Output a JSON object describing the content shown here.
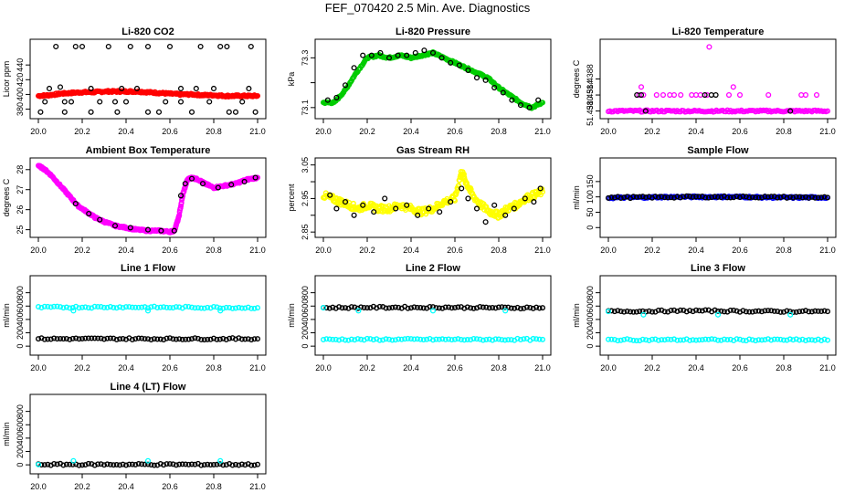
{
  "figure": {
    "title": "FEF_070420  2.5 Min. Ave. Diagnostics"
  },
  "colors": {
    "frame": "#000000",
    "black_points": "#000000"
  },
  "chart_data": [
    {
      "type": "scatter",
      "title": "Li-820 CO2",
      "ylabel": "Licor ppm",
      "xlim": [
        20.0,
        21.0
      ],
      "ylim": [
        372,
        470
      ],
      "yticks": [
        380,
        400,
        420,
        440
      ],
      "ytick_labels": [
        "380",
        "400",
        "420",
        "440"
      ],
      "series": [
        {
          "color": "#ff0000",
          "style": "dense",
          "x": [
            20.0,
            20.05,
            20.1,
            20.15,
            20.2,
            20.25,
            20.3,
            20.35,
            20.4,
            20.45,
            20.5,
            20.55,
            20.6,
            20.65,
            20.7,
            20.75,
            20.8,
            20.85,
            20.9,
            20.95,
            21.0
          ],
          "y": [
            398,
            399,
            401,
            402,
            403,
            403,
            404,
            404,
            404,
            404,
            403,
            402,
            401,
            400,
            400,
            399,
            399,
            398,
            398,
            398,
            398
          ]
        },
        {
          "color": "#000000",
          "style": "sparse",
          "x": [
            20.01,
            20.03,
            20.08,
            20.1,
            20.12,
            20.17,
            20.2,
            20.24,
            20.28,
            20.32,
            20.36,
            20.4,
            20.45,
            20.5,
            20.55,
            20.6,
            20.65,
            20.7,
            20.74,
            20.78,
            20.83,
            20.87,
            20.93,
            20.97,
            20.99,
            20.05,
            20.15,
            20.35,
            20.5,
            20.65,
            20.8,
            20.9,
            20.12,
            20.42,
            20.58,
            20.72,
            20.86,
            20.24,
            20.38,
            20.96
          ],
          "y": [
            376,
            390,
            465,
            410,
            376,
            465,
            465,
            376,
            390,
            465,
            376,
            390,
            408,
            465,
            376,
            465,
            390,
            376,
            465,
            390,
            465,
            376,
            390,
            465,
            376,
            408,
            390,
            390,
            376,
            408,
            408,
            376,
            390,
            465,
            390,
            408,
            465,
            408,
            408,
            408
          ]
        }
      ]
    },
    {
      "type": "scatter",
      "title": "Li-820 Pressure",
      "ylabel": "kPa",
      "xlim": [
        20.0,
        21.0
      ],
      "ylim": [
        73.07,
        73.36
      ],
      "yticks": [
        73.1,
        73.2,
        73.3
      ],
      "ytick_labels": [
        "73.1",
        "",
        "73.3"
      ],
      "series": [
        {
          "color": "#00cc00",
          "style": "dense",
          "x": [
            20.0,
            20.05,
            20.1,
            20.15,
            20.2,
            20.25,
            20.3,
            20.35,
            20.4,
            20.45,
            20.5,
            20.55,
            20.6,
            20.65,
            20.7,
            20.75,
            20.8,
            20.85,
            20.9,
            20.95,
            21.0
          ],
          "y": [
            73.12,
            73.12,
            73.17,
            73.24,
            73.3,
            73.31,
            73.3,
            73.31,
            73.3,
            73.31,
            73.32,
            73.3,
            73.28,
            73.26,
            73.24,
            73.22,
            73.18,
            73.15,
            73.12,
            73.1,
            73.12
          ]
        },
        {
          "color": "#000000",
          "style": "sparse",
          "x": [
            20.02,
            20.06,
            20.1,
            20.14,
            20.18,
            20.22,
            20.26,
            20.3,
            20.34,
            20.38,
            20.42,
            20.46,
            20.5,
            20.54,
            20.58,
            20.62,
            20.66,
            20.7,
            20.74,
            20.78,
            20.82,
            20.86,
            20.9,
            20.94,
            20.98
          ],
          "y": [
            73.13,
            73.14,
            73.19,
            73.26,
            73.31,
            73.31,
            73.32,
            73.3,
            73.31,
            73.31,
            73.32,
            73.33,
            73.32,
            73.3,
            73.28,
            73.27,
            73.25,
            73.22,
            73.21,
            73.18,
            73.16,
            73.13,
            73.11,
            73.1,
            73.13
          ]
        }
      ]
    },
    {
      "type": "scatter",
      "title": "Li-820 Temperature",
      "ylabel": "degrees C",
      "xlim": [
        20.0,
        21.0
      ],
      "ylim": [
        51.4379,
        51.4397
      ],
      "yticks": [
        51.438,
        51.4384,
        51.4388
      ],
      "ytick_labels": [
        "51.4380",
        "51.4384",
        "51.4388"
      ],
      "series": [
        {
          "color": "#ff00ff",
          "style": "dense",
          "x": [
            20.0,
            20.1,
            20.2,
            20.3,
            20.4,
            20.5,
            20.6,
            20.7,
            20.8,
            20.9,
            21.0
          ],
          "y": [
            51.438,
            51.438,
            51.438,
            51.438,
            51.438,
            51.438,
            51.438,
            51.438,
            51.438,
            51.438,
            51.438
          ]
        },
        {
          "color": "#ff00ff",
          "style": "sparse",
          "x": [
            20.14,
            20.15,
            20.16,
            20.22,
            20.25,
            20.28,
            20.3,
            20.33,
            20.38,
            20.4,
            20.42,
            20.45,
            20.46,
            20.55,
            20.57,
            20.6,
            20.73,
            20.88,
            20.9,
            20.95
          ],
          "y": [
            51.4384,
            51.4386,
            51.4384,
            51.4384,
            51.4384,
            51.4384,
            51.4384,
            51.4384,
            51.4384,
            51.4384,
            51.4384,
            51.4384,
            51.4396,
            51.4384,
            51.4386,
            51.4384,
            51.4384,
            51.4384,
            51.4384,
            51.4384
          ]
        },
        {
          "color": "#000000",
          "style": "sparse",
          "x": [
            20.13,
            20.15,
            20.17,
            20.44,
            20.47,
            20.49,
            20.83
          ],
          "y": [
            51.4384,
            51.4384,
            51.438,
            51.4384,
            51.4384,
            51.4384,
            51.438
          ]
        }
      ]
    },
    {
      "type": "scatter",
      "title": "Ambient Box Temperature",
      "ylabel": "degrees C",
      "xlim": [
        20.0,
        21.0
      ],
      "ylim": [
        24.8,
        28.4
      ],
      "yticks": [
        25,
        26,
        27,
        28
      ],
      "ytick_labels": [
        "25",
        "26",
        "27",
        "28"
      ],
      "series": [
        {
          "color": "#ff00ff",
          "style": "dense",
          "x": [
            20.0,
            20.03,
            20.06,
            20.1,
            20.14,
            20.18,
            20.22,
            20.26,
            20.3,
            20.35,
            20.4,
            20.45,
            20.5,
            20.55,
            20.6,
            20.62,
            20.64,
            20.66,
            20.68,
            20.7,
            20.73,
            20.76,
            20.8,
            20.85,
            20.9,
            20.95,
            21.0
          ],
          "y": [
            28.2,
            28.0,
            27.7,
            27.2,
            26.7,
            26.2,
            25.9,
            25.6,
            25.4,
            25.2,
            25.1,
            25.0,
            24.95,
            24.95,
            24.9,
            24.95,
            25.6,
            26.8,
            27.5,
            27.6,
            27.5,
            27.3,
            27.1,
            27.2,
            27.3,
            27.5,
            27.6
          ]
        },
        {
          "color": "#000000",
          "style": "sparse",
          "x": [
            20.17,
            20.23,
            20.28,
            20.35,
            20.42,
            20.5,
            20.56,
            20.62,
            20.65,
            20.67,
            20.7,
            20.75,
            20.82,
            20.88,
            20.94,
            20.99
          ],
          "y": [
            26.3,
            25.8,
            25.5,
            25.2,
            25.1,
            25.0,
            24.95,
            24.95,
            26.7,
            27.3,
            27.55,
            27.3,
            27.1,
            27.25,
            27.4,
            27.6
          ]
        }
      ]
    },
    {
      "type": "scatter",
      "title": "Gas Stream RH",
      "ylabel": "percent",
      "xlim": [
        20.0,
        21.0
      ],
      "ylim": [
        2.845,
        3.06
      ],
      "yticks": [
        2.85,
        2.9,
        2.95,
        3.0,
        3.05
      ],
      "ytick_labels": [
        "2.85",
        "",
        "2.95",
        "",
        "3.05"
      ],
      "series": [
        {
          "color": "#ffff00",
          "style": "dense",
          "x": [
            20.0,
            20.04,
            20.08,
            20.12,
            20.16,
            20.2,
            20.25,
            20.3,
            20.35,
            20.4,
            20.45,
            20.5,
            20.55,
            20.6,
            20.63,
            20.65,
            20.68,
            20.72,
            20.76,
            20.8,
            20.84,
            20.88,
            20.92,
            20.96,
            21.0
          ],
          "y": [
            2.96,
            2.95,
            2.94,
            2.93,
            2.92,
            2.93,
            2.92,
            2.92,
            2.93,
            2.92,
            2.91,
            2.92,
            2.94,
            2.95,
            3.03,
            3.0,
            2.96,
            2.93,
            2.91,
            2.9,
            2.92,
            2.93,
            2.95,
            2.96,
            2.97
          ]
        },
        {
          "color": "#000000",
          "style": "sparse",
          "x": [
            20.03,
            20.06,
            20.1,
            20.14,
            20.18,
            20.23,
            20.28,
            20.33,
            20.38,
            20.43,
            20.48,
            20.53,
            20.58,
            20.63,
            20.66,
            20.7,
            20.74,
            20.78,
            20.83,
            20.87,
            20.92,
            20.96,
            20.99
          ],
          "y": [
            2.96,
            2.92,
            2.94,
            2.9,
            2.93,
            2.91,
            2.95,
            2.92,
            2.93,
            2.9,
            2.92,
            2.91,
            2.94,
            2.98,
            2.95,
            2.92,
            2.88,
            2.93,
            2.9,
            2.92,
            2.95,
            2.94,
            2.98
          ]
        }
      ]
    },
    {
      "type": "scatter",
      "title": "Sample Flow",
      "ylabel": "ml/min",
      "xlim": [
        20.0,
        21.0
      ],
      "ylim": [
        -20,
        215
      ],
      "yticks": [
        0,
        50,
        100,
        150
      ],
      "ytick_labels": [
        "0",
        "50",
        "100",
        "150"
      ],
      "series": [
        {
          "color": "#0000ff",
          "style": "dense",
          "x": [
            20.0,
            20.1,
            20.2,
            20.3,
            20.4,
            20.5,
            20.6,
            20.7,
            20.8,
            20.9,
            21.0
          ],
          "y": [
            97,
            98,
            99,
            100,
            100,
            100,
            100,
            99,
            98,
            98,
            98
          ]
        },
        {
          "color": "#000000",
          "style": "dense",
          "x": [
            20.0,
            20.2,
            20.4,
            20.6,
            20.8,
            21.0
          ],
          "y": [
            98,
            99,
            100,
            100,
            99,
            98
          ]
        }
      ]
    },
    {
      "type": "scatter",
      "title": "Line 1 Flow",
      "ylabel": "ml/min",
      "xlim": [
        20.0,
        21.0
      ],
      "ylim": [
        -80,
        1000
      ],
      "yticks": [
        0,
        200,
        400,
        600,
        800
      ],
      "ytick_labels": [
        "0",
        "200",
        "400",
        "600",
        "800"
      ],
      "series": [
        {
          "color": "#00ffff",
          "style": "dense",
          "x": [
            20.0,
            20.2,
            20.4,
            20.6,
            20.8,
            21.0
          ],
          "y": [
            580,
            585,
            585,
            580,
            580,
            575
          ]
        },
        {
          "color": "#000000",
          "style": "dense",
          "x": [
            20.0,
            20.2,
            20.4,
            20.6,
            20.8,
            21.0
          ],
          "y": [
            110,
            110,
            110,
            110,
            110,
            110
          ]
        },
        {
          "color": "#00ffff",
          "style": "sparse",
          "x": [
            20.16,
            20.5,
            20.83
          ],
          "y": [
            530,
            530,
            530
          ]
        }
      ]
    },
    {
      "type": "scatter",
      "title": "Line 2 Flow",
      "ylabel": "ml/min",
      "xlim": [
        20.0,
        21.0
      ],
      "ylim": [
        -80,
        1000
      ],
      "yticks": [
        0,
        200,
        400,
        600,
        800
      ],
      "ytick_labels": [
        "0",
        "200",
        "400",
        "600",
        "800"
      ],
      "series": [
        {
          "color": "#000000",
          "style": "dense",
          "x": [
            20.0,
            20.2,
            20.4,
            20.6,
            20.8,
            21.0
          ],
          "y": [
            575,
            580,
            580,
            580,
            575,
            575
          ]
        },
        {
          "color": "#00ffff",
          "style": "dense",
          "x": [
            20.0,
            20.2,
            20.4,
            20.6,
            20.8,
            21.0
          ],
          "y": [
            100,
            100,
            100,
            100,
            100,
            100
          ]
        },
        {
          "color": "#00ffff",
          "style": "sparse",
          "x": [
            20.0,
            20.16,
            20.5,
            20.83
          ],
          "y": [
            575,
            530,
            530,
            530
          ]
        }
      ]
    },
    {
      "type": "scatter",
      "title": "Line 3 Flow",
      "ylabel": "ml/min",
      "xlim": [
        20.0,
        21.0
      ],
      "ylim": [
        -80,
        1000
      ],
      "yticks": [
        0,
        200,
        400,
        600,
        800
      ],
      "ytick_labels": [
        "0",
        "200",
        "400",
        "600",
        "800"
      ],
      "series": [
        {
          "color": "#000000",
          "style": "dense",
          "x": [
            20.0,
            20.2,
            20.4,
            20.6,
            20.8,
            21.0
          ],
          "y": [
            520,
            525,
            530,
            525,
            520,
            520
          ]
        },
        {
          "color": "#00ffff",
          "style": "dense",
          "x": [
            20.0,
            20.2,
            20.4,
            20.6,
            20.8,
            21.0
          ],
          "y": [
            95,
            95,
            95,
            95,
            95,
            90
          ]
        },
        {
          "color": "#00ffff",
          "style": "sparse",
          "x": [
            20.0,
            20.16,
            20.5,
            20.83
          ],
          "y": [
            520,
            470,
            470,
            470
          ]
        }
      ]
    },
    {
      "type": "scatter",
      "title": "Line 4 (LT) Flow",
      "ylabel": "ml/min",
      "xlim": [
        20.0,
        21.0
      ],
      "ylim": [
        -80,
        1000
      ],
      "yticks": [
        0,
        200,
        400,
        600,
        800
      ],
      "ytick_labels": [
        "0",
        "200",
        "400",
        "600",
        "800"
      ],
      "series": [
        {
          "color": "#000000",
          "style": "dense",
          "x": [
            20.0,
            20.2,
            20.4,
            20.6,
            20.8,
            21.0
          ],
          "y": [
            5,
            5,
            5,
            5,
            5,
            5
          ]
        },
        {
          "color": "#00ffff",
          "style": "sparse",
          "x": [
            20.0,
            20.16,
            20.5,
            20.83
          ],
          "y": [
            5,
            60,
            60,
            60
          ]
        }
      ]
    }
  ],
  "x_axis": {
    "ticks": [
      20.0,
      20.2,
      20.4,
      20.6,
      20.8,
      21.0
    ],
    "tick_labels": [
      "20.0",
      "20.2",
      "20.4",
      "20.6",
      "20.8",
      "21.0"
    ]
  }
}
